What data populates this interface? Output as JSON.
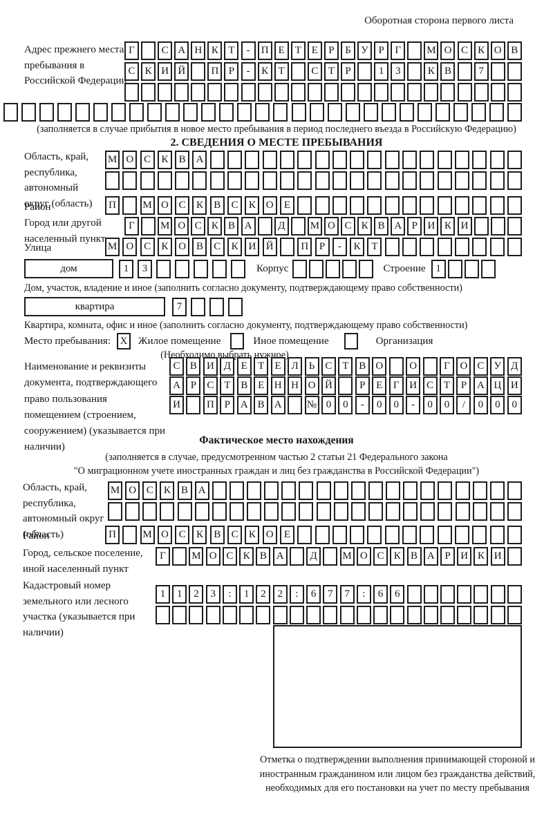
{
  "page": {
    "header_note": "Оборотная сторона первого листа"
  },
  "prev_address": {
    "label": "Адрес прежнего места пребывания в Российской Федерации",
    "rows": [
      {
        "chars": "Г САНКТ-ПЕТЕРБУРГ МОСКОВ",
        "len": 24
      },
      {
        "chars": "СКИЙ ПР-КТ СТР 13 КВ 7",
        "len": 24
      },
      {
        "chars": "",
        "len": 24
      }
    ],
    "overflow_row": {
      "chars": "",
      "len": 29
    },
    "note": "(заполняется в случае прибытия в новое место пребывания в период последнего въезда в Российскую Федерацию)"
  },
  "section2": {
    "title": "2. СВЕДЕНИЯ О МЕСТЕ ПРЕБЫВАНИЯ",
    "region_label": "Область, край, республика, автономный округ (область)",
    "region_rows": [
      {
        "chars": "МОСКВА",
        "len": 24
      },
      {
        "chars": "",
        "len": 24
      }
    ],
    "district_label": "Район",
    "district_row": {
      "chars": "П МОСКВСКОЕ",
      "len": 24
    },
    "city_label": "Город или другой населенный пункт",
    "city_row": {
      "chars": "Г МОСКВА Д МОСКВАРИКИ",
      "len": 24
    },
    "street_label": "Улица",
    "street_row": {
      "chars": "МОСКОВСКИЙ ПР-КТ",
      "len": 24
    },
    "house_label": "дом",
    "house_row": {
      "chars": "13",
      "len": 7
    },
    "korpus_label": "Корпус",
    "korpus_row": {
      "chars": "",
      "len": 5
    },
    "stroenie_label": "Строение",
    "stroenie_row": {
      "chars": "1",
      "len": 4
    },
    "house_note": "Дом, участок, владение и иное (заполнить согласно документу, подтверждающему право собственности)",
    "apartment_label": "квартира",
    "apartment_row": {
      "chars": "7",
      "len": 4
    },
    "apartment_note": "Квартира, комната, офис и иное (заполнить согласно документу, подтверждающему право собственности)",
    "stay_label": "Место пребывания:",
    "stay_options": [
      {
        "label": "Жилое помещение",
        "mark": "X"
      },
      {
        "label": "Иное помещение",
        "mark": ""
      },
      {
        "label": "Организация",
        "mark": ""
      }
    ],
    "stay_note": "(Необходимо выбрать нужное)",
    "doc_label": "Наименование и реквизиты документа, подтверждающего право пользования помещением (строением, сооружением) (указывается при наличии)",
    "doc_rows": [
      {
        "chars": "СВИДЕТЕЛЬСТВО О ГОСУД",
        "len": 21
      },
      {
        "chars": "АРСТВЕННОЙ РЕГИСТРАЦИ",
        "len": 21
      },
      {
        "chars": "И ПРАВА №00-00-00/000",
        "len": 21
      }
    ]
  },
  "actual": {
    "title": "Фактическое место нахождения",
    "note1": "(заполняется в случае, предусмотренном частью 2 статьи 21 Федерального закона",
    "note2": "\"О миграционном учете иностранных граждан и лиц без гражданства в Российской Федерации\")",
    "region_label": "Область, край, республика, автономный округ (область)",
    "region_rows": [
      {
        "chars": "МОСКВА",
        "len": 24
      },
      {
        "chars": "",
        "len": 24
      }
    ],
    "district_label": "Район",
    "district_row": {
      "chars": "П МОСКВСКОЕ",
      "len": 24
    },
    "city_label": "Город, сельское поселение, иной населенный пункт",
    "city_row": {
      "chars": "Г МОСКВА Д МОСКВАРИКИ",
      "len": 22
    },
    "cadastral_label": "Кадастровый номер земельного или лесного участка (указывается при наличии)",
    "cadastral_rows": [
      {
        "chars": "1123:122:677:66",
        "len": 22
      },
      {
        "chars": "",
        "len": 22
      }
    ],
    "stamp_note": "Отметка о подтверждении выполнения принимающей стороной и иностранным гражданином или лицом без гражданства действий, необходимых для его постановки на учет по месту пребывания"
  }
}
